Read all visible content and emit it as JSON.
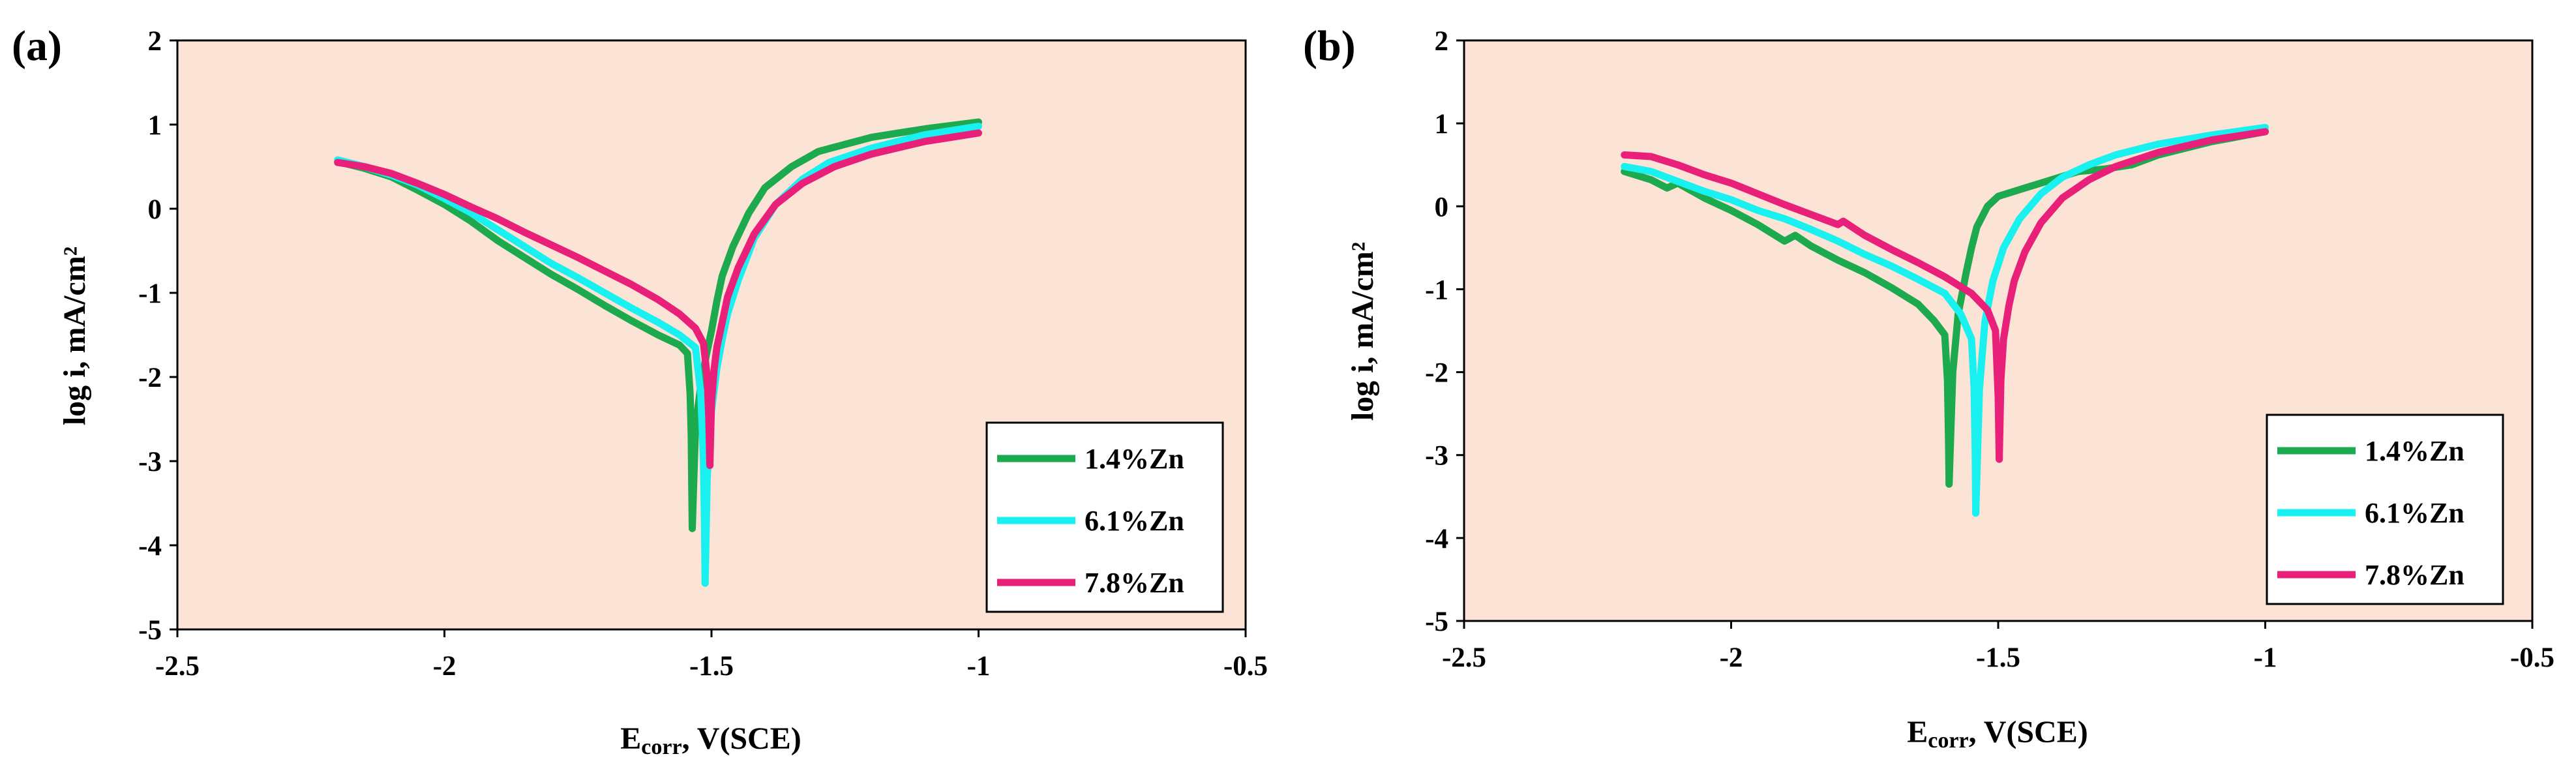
{
  "colors": {
    "plot_bg": "#FBE3D5",
    "series": [
      "#1DAA4E",
      "#19F0F0",
      "#E8207A"
    ]
  },
  "chart_data": [
    {
      "type": "line",
      "panel_label": "(a)",
      "xlabel_main": "E",
      "xlabel_sub": "corr",
      "xlabel_rest": ", V(SCE)",
      "ylabel": "log i, mA/cm²",
      "xlim": [
        -2.5,
        -0.5
      ],
      "ylim": [
        -5,
        2
      ],
      "xticks": [
        -2.5,
        -2,
        -1.5,
        -1,
        -0.5
      ],
      "xtick_labels": [
        "-2.5",
        "-2",
        "-1.5",
        "-1",
        "-0.5"
      ],
      "yticks": [
        2,
        1,
        0,
        -1,
        -2,
        -3,
        -4,
        -5
      ],
      "ytick_labels": [
        "2",
        "1",
        "0",
        "-1",
        "-2",
        "-3",
        "-4",
        "-5"
      ],
      "legend_position": "bottom-right",
      "series": [
        {
          "name": "1.4%Zn",
          "color": "#1DAA4E",
          "x": [
            -2.2,
            -2.15,
            -2.1,
            -2.05,
            -2.0,
            -1.95,
            -1.9,
            -1.85,
            -1.8,
            -1.75,
            -1.7,
            -1.65,
            -1.6,
            -1.56,
            -1.545,
            -1.54,
            -1.538,
            -1.537,
            -1.536
          ],
          "y": [
            0.56,
            0.48,
            0.38,
            0.22,
            0.05,
            -0.15,
            -0.38,
            -0.58,
            -0.78,
            -0.96,
            -1.15,
            -1.33,
            -1.5,
            -1.62,
            -1.72,
            -2.2,
            -2.7,
            -3.3,
            -3.8
          ],
          "x2": [
            -1.536,
            -1.53,
            -1.52,
            -1.51,
            -1.5,
            -1.49,
            -1.48,
            -1.46,
            -1.43,
            -1.4,
            -1.35,
            -1.3,
            -1.2,
            -1.1,
            -1.0
          ],
          "y2": [
            -3.8,
            -2.6,
            -2.1,
            -1.75,
            -1.45,
            -1.1,
            -0.8,
            -0.45,
            -0.05,
            0.25,
            0.5,
            0.68,
            0.85,
            0.95,
            1.03
          ]
        },
        {
          "name": "6.1%Zn",
          "color": "#19F0F0",
          "x": [
            -2.2,
            -2.15,
            -2.1,
            -2.05,
            -2.0,
            -1.95,
            -1.9,
            -1.85,
            -1.8,
            -1.75,
            -1.7,
            -1.65,
            -1.6,
            -1.56,
            -1.53,
            -1.52,
            -1.515,
            -1.513,
            -1.512
          ],
          "y": [
            0.58,
            0.5,
            0.4,
            0.28,
            0.12,
            -0.05,
            -0.25,
            -0.45,
            -0.65,
            -0.82,
            -1.0,
            -1.18,
            -1.35,
            -1.5,
            -1.65,
            -2.2,
            -3.0,
            -3.8,
            -4.45
          ],
          "x2": [
            -1.512,
            -1.508,
            -1.5,
            -1.49,
            -1.48,
            -1.47,
            -1.45,
            -1.42,
            -1.38,
            -1.33,
            -1.28,
            -1.2,
            -1.1,
            -1.0
          ],
          "y2": [
            -4.45,
            -3.2,
            -2.4,
            -1.9,
            -1.55,
            -1.25,
            -0.85,
            -0.35,
            0.05,
            0.35,
            0.55,
            0.72,
            0.88,
            0.98
          ]
        },
        {
          "name": "7.8%Zn",
          "color": "#E8207A",
          "x": [
            -2.2,
            -2.15,
            -2.1,
            -2.05,
            -2.0,
            -1.95,
            -1.9,
            -1.85,
            -1.8,
            -1.75,
            -1.7,
            -1.65,
            -1.6,
            -1.56,
            -1.53,
            -1.515,
            -1.508,
            -1.505,
            -1.503
          ],
          "y": [
            0.55,
            0.5,
            0.42,
            0.3,
            0.17,
            0.02,
            -0.12,
            -0.28,
            -0.43,
            -0.58,
            -0.74,
            -0.9,
            -1.08,
            -1.25,
            -1.42,
            -1.6,
            -2.0,
            -2.5,
            -3.05
          ],
          "x2": [
            -1.503,
            -1.5,
            -1.495,
            -1.49,
            -1.48,
            -1.47,
            -1.45,
            -1.42,
            -1.38,
            -1.33,
            -1.27,
            -1.2,
            -1.1,
            -1.0
          ],
          "y2": [
            -3.05,
            -2.3,
            -1.9,
            -1.65,
            -1.35,
            -1.05,
            -0.7,
            -0.3,
            0.05,
            0.3,
            0.5,
            0.65,
            0.8,
            0.9
          ]
        }
      ]
    },
    {
      "type": "line",
      "panel_label": "(b)",
      "xlabel_main": "E",
      "xlabel_sub": "corr",
      "xlabel_rest": ", V(SCE)",
      "ylabel": "log i, mA/cm²",
      "xlim": [
        -2.5,
        -0.5
      ],
      "ylim": [
        -5,
        2
      ],
      "xticks": [
        -2.5,
        -2,
        -1.5,
        -1,
        -0.5
      ],
      "xtick_labels": [
        "-2.5",
        "-2",
        "-1.5",
        "-1",
        "-0.5"
      ],
      "yticks": [
        2,
        1,
        0,
        -1,
        -2,
        -3,
        -4,
        -5
      ],
      "ytick_labels": [
        "2",
        "1",
        "0",
        "-1",
        "-2",
        "-3",
        "-4",
        "-5"
      ],
      "legend_position": "bottom-right",
      "series": [
        {
          "name": "1.4%Zn",
          "color": "#1DAA4E",
          "x": [
            -2.2,
            -2.15,
            -2.12,
            -2.1,
            -2.05,
            -2.0,
            -1.95,
            -1.9,
            -1.88,
            -1.85,
            -1.8,
            -1.75,
            -1.7,
            -1.65,
            -1.62,
            -1.6,
            -1.595,
            -1.593,
            -1.592
          ],
          "y": [
            0.42,
            0.32,
            0.22,
            0.28,
            0.1,
            -0.05,
            -0.22,
            -0.42,
            -0.35,
            -0.48,
            -0.65,
            -0.8,
            -0.98,
            -1.18,
            -1.38,
            -1.55,
            -2.1,
            -2.8,
            -3.35
          ],
          "x2": [
            -1.592,
            -1.585,
            -1.575,
            -1.56,
            -1.55,
            -1.54,
            -1.52,
            -1.5,
            -1.45,
            -1.4,
            -1.35,
            -1.3,
            -1.25,
            -1.2,
            -1.1,
            -1.0
          ],
          "y2": [
            -3.35,
            -2.0,
            -1.3,
            -0.8,
            -0.5,
            -0.25,
            0.0,
            0.12,
            0.22,
            0.32,
            0.42,
            0.45,
            0.5,
            0.62,
            0.78,
            0.9
          ]
        },
        {
          "name": "6.1%Zn",
          "color": "#19F0F0",
          "x": [
            -2.2,
            -2.15,
            -2.1,
            -2.05,
            -2.0,
            -1.95,
            -1.9,
            -1.85,
            -1.8,
            -1.75,
            -1.7,
            -1.65,
            -1.6,
            -1.57,
            -1.55,
            -1.545,
            -1.543,
            -1.542
          ],
          "y": [
            0.48,
            0.42,
            0.3,
            0.18,
            0.08,
            -0.05,
            -0.15,
            -0.28,
            -0.42,
            -0.58,
            -0.72,
            -0.88,
            -1.05,
            -1.3,
            -1.6,
            -2.2,
            -3.0,
            -3.7
          ],
          "x2": [
            -1.542,
            -1.535,
            -1.525,
            -1.51,
            -1.49,
            -1.46,
            -1.42,
            -1.38,
            -1.33,
            -1.28,
            -1.2,
            -1.1,
            -1.0
          ],
          "y2": [
            -3.7,
            -2.2,
            -1.4,
            -0.9,
            -0.5,
            -0.15,
            0.15,
            0.35,
            0.5,
            0.62,
            0.75,
            0.86,
            0.95
          ]
        },
        {
          "name": "7.8%Zn",
          "color": "#E8207A",
          "x": [
            -2.2,
            -2.15,
            -2.1,
            -2.05,
            -2.0,
            -1.95,
            -1.9,
            -1.85,
            -1.8,
            -1.79,
            -1.75,
            -1.7,
            -1.65,
            -1.6,
            -1.55,
            -1.52,
            -1.505,
            -1.5,
            -1.498
          ],
          "y": [
            0.62,
            0.6,
            0.5,
            0.38,
            0.28,
            0.15,
            0.02,
            -0.1,
            -0.22,
            -0.18,
            -0.35,
            -0.52,
            -0.68,
            -0.85,
            -1.05,
            -1.25,
            -1.5,
            -2.3,
            -3.05
          ],
          "x2": [
            -1.498,
            -1.495,
            -1.49,
            -1.48,
            -1.47,
            -1.45,
            -1.42,
            -1.38,
            -1.33,
            -1.28,
            -1.2,
            -1.1,
            -1.0
          ],
          "y2": [
            -3.05,
            -2.1,
            -1.6,
            -1.2,
            -0.9,
            -0.55,
            -0.2,
            0.1,
            0.32,
            0.48,
            0.65,
            0.8,
            0.9
          ]
        }
      ]
    }
  ]
}
